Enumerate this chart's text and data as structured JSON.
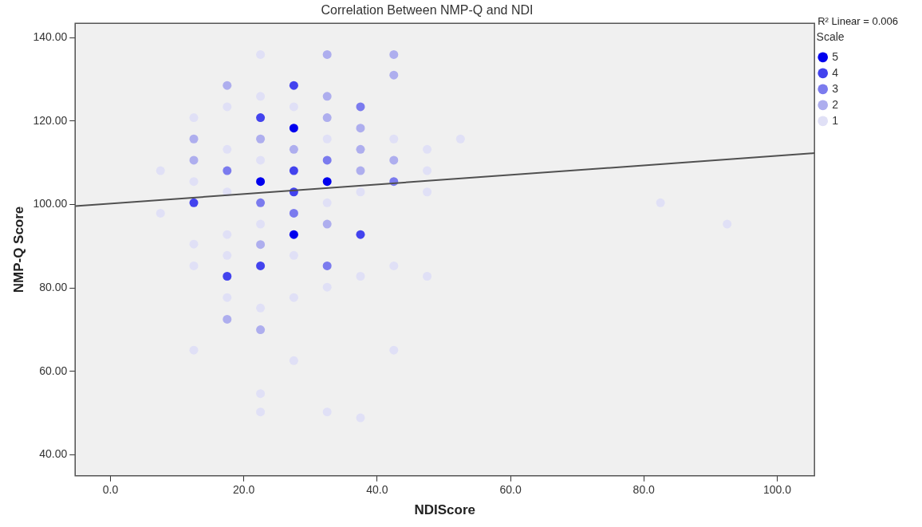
{
  "chart_data": {
    "type": "scatter",
    "title": "Correlation Between NMP-Q and NDI",
    "xlabel": "NDIScore",
    "ylabel": "NMP-Q Score",
    "legend_title": "Scale",
    "annotations": [
      "R² Linear = 0.006"
    ],
    "xlim": [
      -5.3,
      105.6
    ],
    "ylim": [
      35,
      143.4
    ],
    "xticks": [
      {
        "value": 0,
        "label": "0.0"
      },
      {
        "value": 20,
        "label": "20.0"
      },
      {
        "value": 40,
        "label": "40.0"
      },
      {
        "value": 60,
        "label": "60.0"
      },
      {
        "value": 80,
        "label": "80.0"
      },
      {
        "value": 100,
        "label": "100.0"
      }
    ],
    "yticks": [
      {
        "value": 40,
        "label": "40.00"
      },
      {
        "value": 60,
        "label": "60.00"
      },
      {
        "value": 80,
        "label": "80.00"
      },
      {
        "value": 100,
        "label": "100.00"
      },
      {
        "value": 120,
        "label": "120.00"
      },
      {
        "value": 140,
        "label": "140.00"
      }
    ],
    "grid": false,
    "legend": "top right",
    "marker": "circle",
    "series": [
      {
        "name": "5",
        "color": "#0000ee",
        "x": [
          22.5,
          27.5,
          27.5,
          32.5
        ],
        "values": [
          105.5,
          118.3,
          92.8,
          105.5
        ]
      },
      {
        "name": "4",
        "color": "#4343ee",
        "x": [
          12.5,
          17.5,
          22.5,
          22.5,
          27.5,
          27.5,
          27.5,
          37.5
        ],
        "values": [
          100.4,
          82.8,
          120.8,
          85.3,
          128.5,
          108.1,
          103,
          92.8
        ]
      },
      {
        "name": "3",
        "color": "#7b7bee",
        "x": [
          17.5,
          22.5,
          27.5,
          32.5,
          32.5,
          37.5,
          42.5
        ],
        "values": [
          108.1,
          100.4,
          97.9,
          110.6,
          85.3,
          123.4,
          105.5
        ]
      },
      {
        "name": "2",
        "color": "#aeaeee",
        "x": [
          12.5,
          12.5,
          17.5,
          17.5,
          22.5,
          22.5,
          22.5,
          27.5,
          32.5,
          32.5,
          32.5,
          32.5,
          37.5,
          37.5,
          37.5,
          42.5,
          42.5,
          42.5
        ],
        "values": [
          115.7,
          110.6,
          128.5,
          72.5,
          115.7,
          90.4,
          70,
          113.2,
          135.9,
          125.9,
          120.8,
          95.3,
          118.3,
          113.2,
          108.1,
          135.9,
          131,
          110.6
        ]
      },
      {
        "name": "1",
        "color": "#e0e0f6",
        "x": [
          7.5,
          7.5,
          12.5,
          12.5,
          12.5,
          12.5,
          12.5,
          17.5,
          17.5,
          17.5,
          17.5,
          17.5,
          17.5,
          22.5,
          22.5,
          22.5,
          22.5,
          22.5,
          22.5,
          22.5,
          27.5,
          27.5,
          27.5,
          27.5,
          32.5,
          32.5,
          32.5,
          32.5,
          37.5,
          37.5,
          37.5,
          42.5,
          42.5,
          42.5,
          47.5,
          47.5,
          47.5,
          47.5,
          52.5,
          82.5,
          92.5
        ],
        "values": [
          108.1,
          97.9,
          120.8,
          105.5,
          90.5,
          85.3,
          65.1,
          123.4,
          113.2,
          103,
          92.8,
          87.8,
          77.7,
          135.9,
          125.9,
          110.6,
          95.3,
          75.2,
          54.7,
          50.3,
          123.4,
          87.8,
          77.7,
          62.6,
          115.7,
          100.4,
          80.2,
          50.3,
          103,
          82.8,
          48.9,
          115.7,
          85.3,
          65.1,
          113.2,
          108.1,
          103,
          82.8,
          115.7,
          100.4,
          95.3
        ]
      },
      {
        "type": "line",
        "marker": "none",
        "color": "#505050",
        "x": [
          -5.3,
          105.6
        ],
        "values": [
          99.6,
          112.3
        ]
      }
    ]
  }
}
